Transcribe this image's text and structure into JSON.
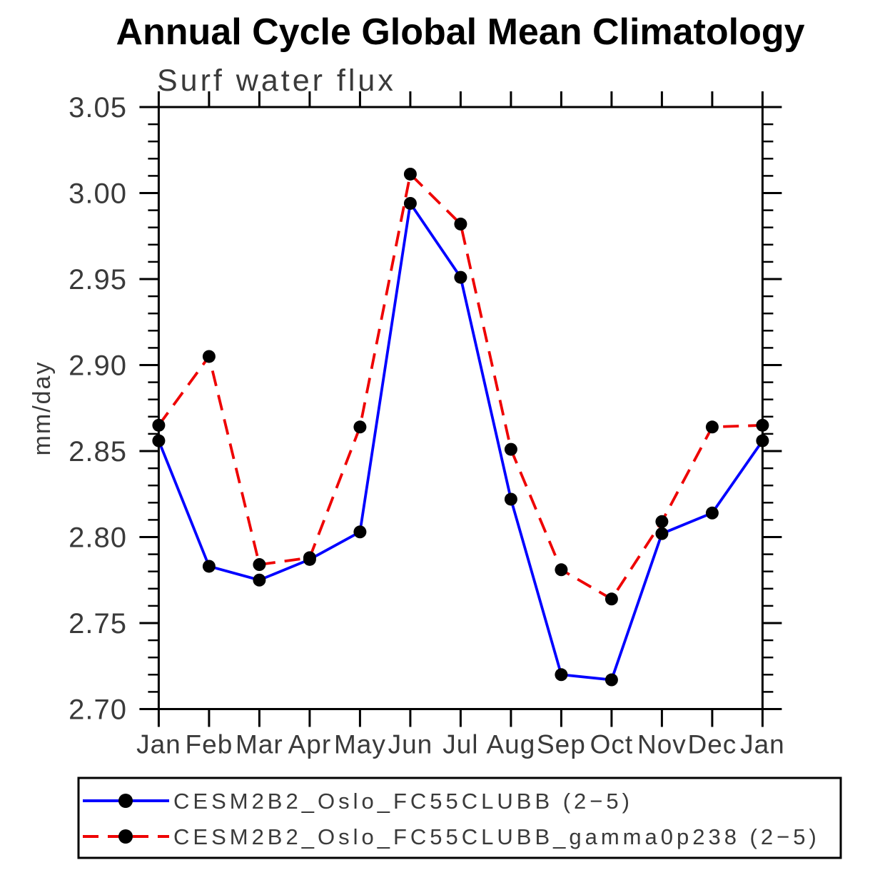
{
  "chart_data": {
    "type": "line",
    "title": "Annual Cycle Global Mean Climatology",
    "subtitle": "Surf water flux",
    "xlabel": "",
    "ylabel": "mm/day",
    "categories": [
      "Jan",
      "Feb",
      "Mar",
      "Apr",
      "May",
      "Jun",
      "Jul",
      "Aug",
      "Sep",
      "Oct",
      "Nov",
      "Dec",
      "Jan"
    ],
    "ylim": [
      2.7,
      3.05
    ],
    "ytick_major_step": 0.05,
    "ytick_minor_step": 0.01,
    "ytick_labels": [
      "2.70",
      "2.75",
      "2.80",
      "2.85",
      "2.90",
      "2.95",
      "3.00",
      "3.05"
    ],
    "grid": "off",
    "legend_position": "bottom",
    "marker": "black-circle",
    "marker_color": "#000000",
    "series": [
      {
        "name": "CESM2B2_Oslo_FC55CLUBB (2−5)",
        "color": "#0000ff",
        "style": "solid",
        "values": [
          2.856,
          2.783,
          2.775,
          2.787,
          2.803,
          2.994,
          2.951,
          2.822,
          2.72,
          2.717,
          2.802,
          2.814,
          2.856
        ]
      },
      {
        "name": "CESM2B2_Oslo_FC55CLUBB_gamma0p238 (2−5)",
        "color": "#ee0000",
        "style": "dashed",
        "values": [
          2.865,
          2.905,
          2.784,
          2.788,
          2.864,
          3.011,
          2.982,
          2.851,
          2.781,
          2.764,
          2.809,
          2.864,
          2.865
        ]
      }
    ]
  }
}
